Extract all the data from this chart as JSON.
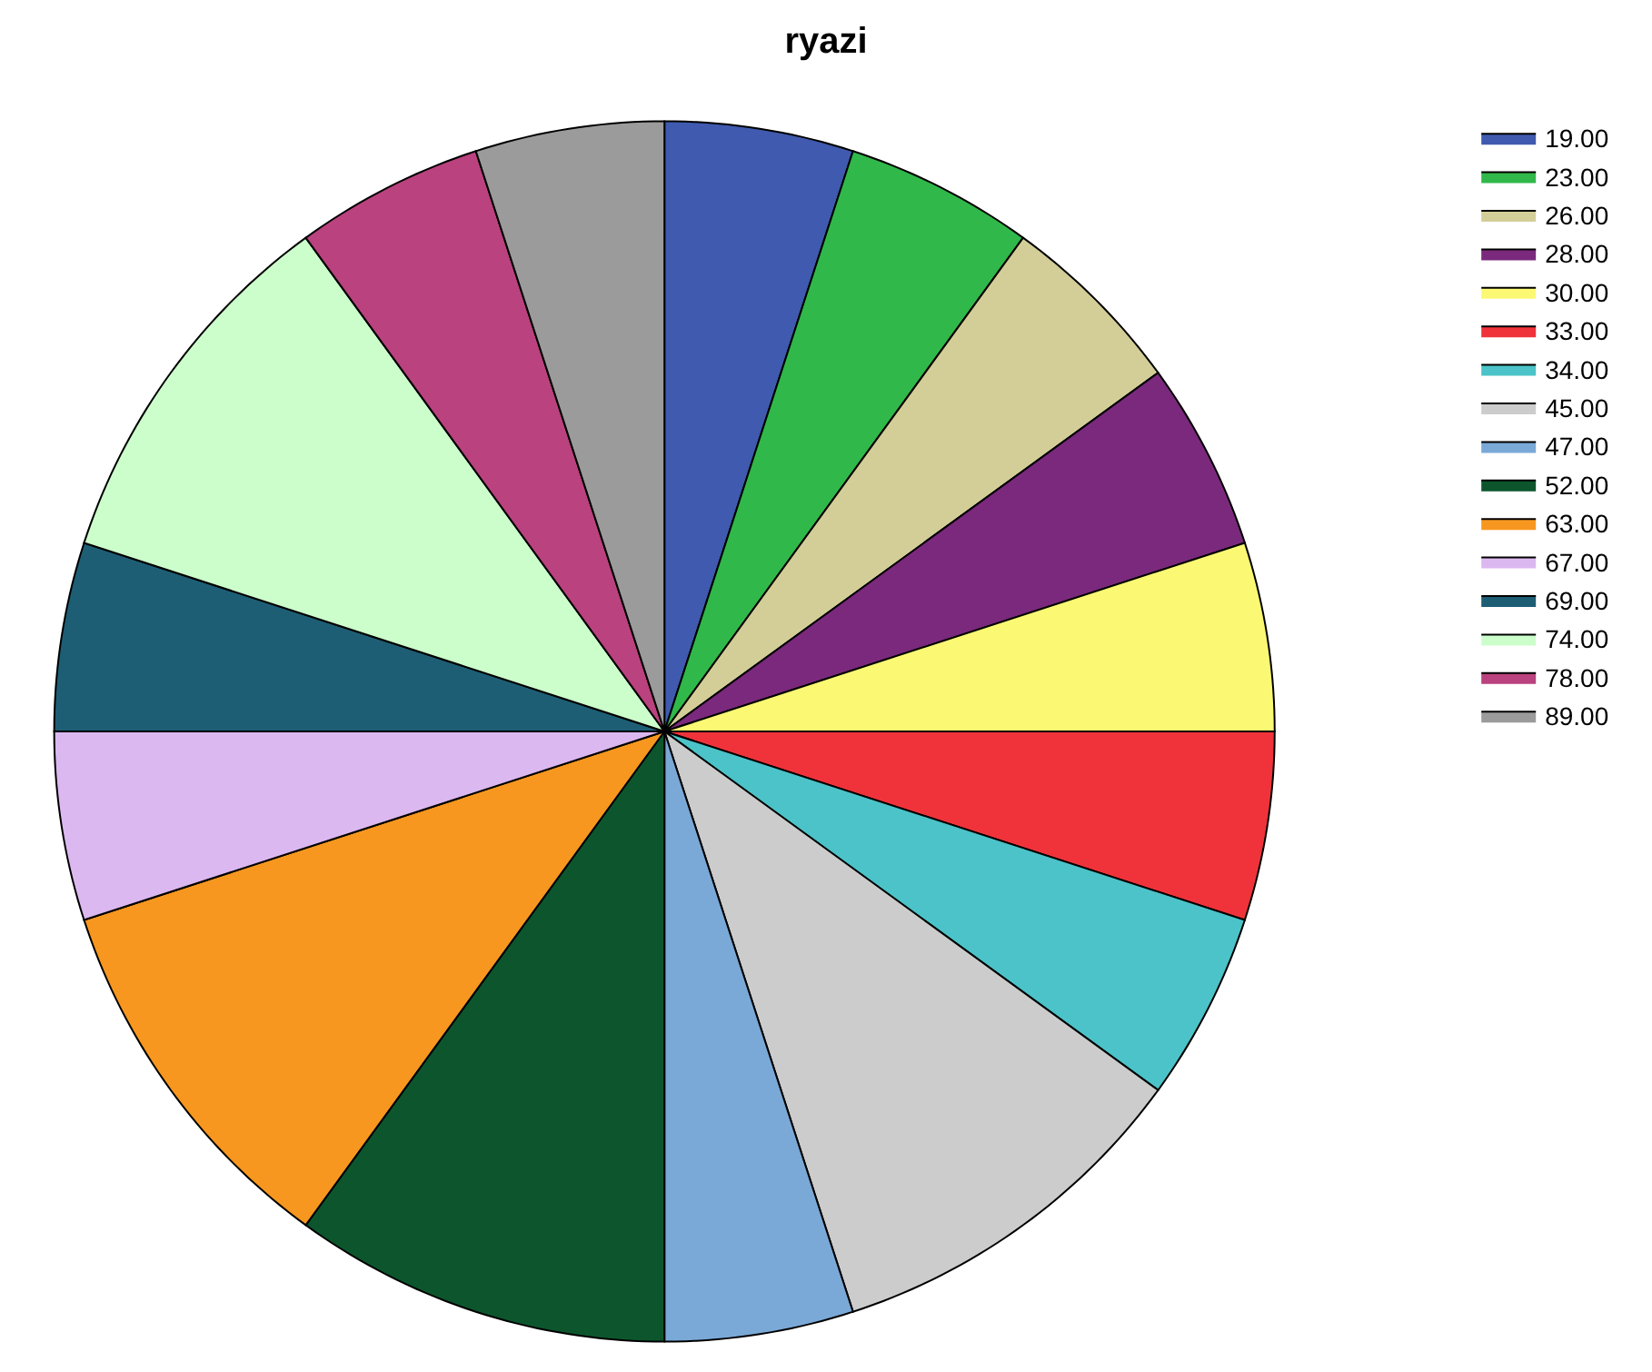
{
  "chart_data": {
    "type": "pie",
    "title": "ryazi",
    "legend": "top right",
    "categories": [
      "19.00",
      "23.00",
      "26.00",
      "28.00",
      "30.00",
      "33.00",
      "34.00",
      "45.00",
      "47.00",
      "52.00",
      "63.00",
      "67.00",
      "69.00",
      "74.00",
      "78.00",
      "89.00"
    ],
    "values": [
      5,
      5,
      5,
      5,
      5,
      5,
      5,
      10,
      5,
      10,
      10,
      5,
      5,
      10,
      5,
      5
    ],
    "colors": [
      "#3f5aae",
      "#31b84a",
      "#d3ce98",
      "#7a297c",
      "#fbf873",
      "#f0333a",
      "#4bc3c8",
      "#cccccc",
      "#7aa9d7",
      "#0d562d",
      "#f7971f",
      "#dcb8f0",
      "#1e5e75",
      "#ccfecc",
      "#ba427e",
      "#9b9b9b"
    ]
  }
}
